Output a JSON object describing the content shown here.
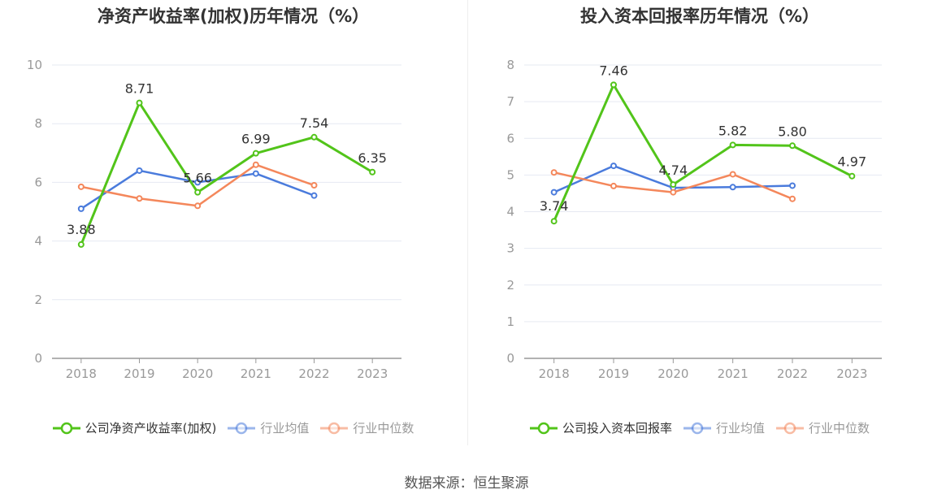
{
  "source_note": "数据来源：恒生聚源",
  "legend_swatch_colors": [
    "#52c41a",
    "#4a7bdc",
    "#f4875b"
  ],
  "chart_data": [
    {
      "type": "line",
      "title": "净资产收益率(加权)历年情况（%）",
      "categories": [
        "2018",
        "2019",
        "2020",
        "2021",
        "2022",
        "2023"
      ],
      "ylim": [
        0,
        10
      ],
      "yticks": [
        "0",
        "2",
        "4",
        "6",
        "8",
        "10"
      ],
      "grid": true,
      "legend_position": "bottom",
      "series": [
        {
          "name": "公司净资产收益率(加权)",
          "color": "#52c41a",
          "labeled": true,
          "dim": false,
          "values": [
            3.88,
            8.71,
            5.66,
            6.99,
            7.54,
            6.35
          ],
          "labels": [
            "3.88",
            "8.71",
            "5.66",
            "6.99",
            "7.54",
            "6.35"
          ]
        },
        {
          "name": "行业均值",
          "color": "#4a7bdc",
          "labeled": false,
          "dim": true,
          "values": [
            5.1,
            6.4,
            6.0,
            6.3,
            5.55,
            null
          ]
        },
        {
          "name": "行业中位数",
          "color": "#f4875b",
          "labeled": false,
          "dim": true,
          "values": [
            5.85,
            5.45,
            5.2,
            6.6,
            5.9,
            null
          ]
        }
      ]
    },
    {
      "type": "line",
      "title": "投入资本回报率历年情况（%）",
      "categories": [
        "2018",
        "2019",
        "2020",
        "2021",
        "2022",
        "2023"
      ],
      "ylim": [
        0,
        8
      ],
      "yticks": [
        "0",
        "1",
        "2",
        "3",
        "4",
        "5",
        "6",
        "7",
        "8"
      ],
      "grid": true,
      "legend_position": "bottom",
      "series": [
        {
          "name": "公司投入资本回报率",
          "color": "#52c41a",
          "labeled": true,
          "dim": false,
          "values": [
            3.74,
            7.46,
            4.74,
            5.82,
            5.8,
            4.97
          ],
          "labels": [
            "3.74",
            "7.46",
            "4.74",
            "5.82",
            "5.80",
            "4.97"
          ]
        },
        {
          "name": "行业均值",
          "color": "#4a7bdc",
          "labeled": false,
          "dim": true,
          "values": [
            4.53,
            5.25,
            4.65,
            4.67,
            4.71,
            null
          ]
        },
        {
          "name": "行业中位数",
          "color": "#f4875b",
          "labeled": false,
          "dim": true,
          "values": [
            5.07,
            4.7,
            4.53,
            5.02,
            4.35,
            null
          ]
        }
      ]
    }
  ]
}
